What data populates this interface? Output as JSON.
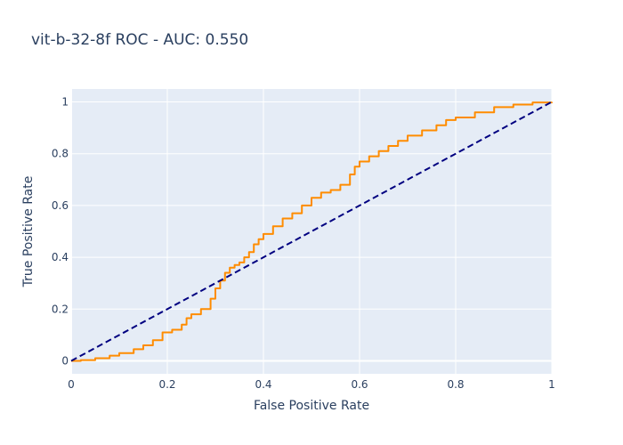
{
  "chart_data": {
    "type": "line",
    "title": "vit-b-32-8f ROC - AUC: 0.550",
    "xlabel": "False Positive Rate",
    "ylabel": "True Positive Rate",
    "xlim": [
      0,
      1
    ],
    "ylim": [
      -0.05,
      1.05
    ],
    "x_ticks": [
      0,
      0.2,
      0.4,
      0.6,
      0.8,
      1
    ],
    "x_tick_labels": [
      "0",
      "0.2",
      "0.4",
      "0.6",
      "0.8",
      "1"
    ],
    "y_ticks": [
      0,
      0.2,
      0.4,
      0.6,
      0.8,
      1
    ],
    "y_tick_labels": [
      "0",
      "0.2",
      "0.4",
      "0.6",
      "0.8",
      "1"
    ],
    "grid": true,
    "legend": "none",
    "series": [
      {
        "color": "#ff8c00",
        "x": [
          0,
          0.02,
          0.05,
          0.08,
          0.1,
          0.13,
          0.15,
          0.17,
          0.19,
          0.21,
          0.23,
          0.24,
          0.25,
          0.27,
          0.29,
          0.3,
          0.31,
          0.32,
          0.33,
          0.34,
          0.35,
          0.36,
          0.37,
          0.38,
          0.39,
          0.4,
          0.42,
          0.44,
          0.46,
          0.48,
          0.5,
          0.52,
          0.54,
          0.56,
          0.58,
          0.59,
          0.6,
          0.62,
          0.64,
          0.66,
          0.68,
          0.7,
          0.73,
          0.76,
          0.78,
          0.8,
          0.84,
          0.88,
          0.92,
          0.96,
          1.0
        ],
        "y": [
          0,
          0.003,
          0.01,
          0.02,
          0.03,
          0.045,
          0.06,
          0.08,
          0.11,
          0.12,
          0.14,
          0.165,
          0.18,
          0.2,
          0.24,
          0.28,
          0.31,
          0.34,
          0.36,
          0.37,
          0.38,
          0.4,
          0.42,
          0.45,
          0.47,
          0.49,
          0.52,
          0.55,
          0.57,
          0.6,
          0.63,
          0.65,
          0.66,
          0.68,
          0.72,
          0.75,
          0.77,
          0.79,
          0.81,
          0.83,
          0.85,
          0.87,
          0.89,
          0.91,
          0.93,
          0.94,
          0.96,
          0.98,
          0.99,
          0.998,
          1.0
        ]
      },
      {
        "color": "#000080",
        "dash": "dashed",
        "x": [
          0,
          1
        ],
        "y": [
          0,
          1
        ]
      }
    ]
  }
}
